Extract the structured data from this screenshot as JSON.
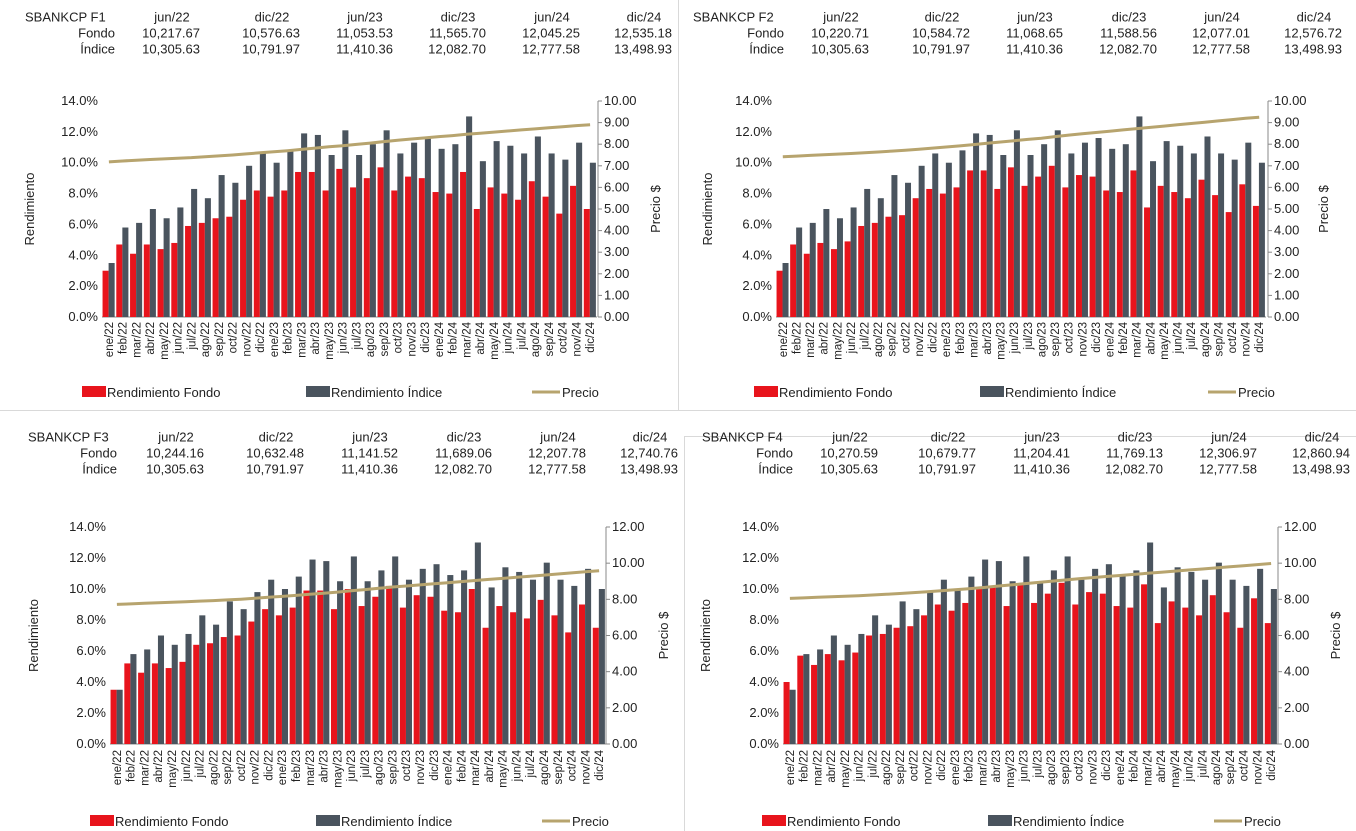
{
  "colors": {
    "fondo": "#e8141c",
    "indice": "#4a545e",
    "precio": "#b7a46e"
  },
  "legend": {
    "fondo": "Rendimiento Fondo",
    "indice": "Rendimiento Índice",
    "precio": "Precio"
  },
  "chart_data": [
    {
      "type": "bar",
      "name": "SBANKCP F1",
      "periods": [
        "jun/22",
        "dic/22",
        "jun/23",
        "dic/23",
        "jun/24",
        "dic/24"
      ],
      "row_labels": [
        "Fondo",
        "Índice"
      ],
      "fondo_row": [
        "10,217.67",
        "10,576.63",
        "11,053.53",
        "11,565.70",
        "12,045.25",
        "12,535.18"
      ],
      "indice_row": [
        "10,305.63",
        "10,791.97",
        "11,410.36",
        "12,082.70",
        "12,777.58",
        "13,498.93"
      ],
      "categories": [
        "ene/22",
        "feb/22",
        "mar/22",
        "abr/22",
        "may/22",
        "jun/22",
        "jul/22",
        "ago/22",
        "sep/22",
        "oct/22",
        "nov/22",
        "dic/22",
        "ene/23",
        "feb/23",
        "mar/23",
        "abr/23",
        "may/23",
        "jun/23",
        "jul/23",
        "ago/23",
        "sep/23",
        "oct/23",
        "nov/23",
        "dic/23",
        "ene/24",
        "feb/24",
        "mar/24",
        "abr/24",
        "may/24",
        "jun/24",
        "jul/24",
        "ago/24",
        "sep/24",
        "oct/24",
        "nov/24",
        "dic/24"
      ],
      "series": [
        {
          "name": "Rendimiento Fondo",
          "axis": "left",
          "values": [
            3.0,
            4.7,
            4.1,
            4.7,
            4.4,
            4.8,
            5.9,
            6.1,
            6.4,
            6.5,
            7.6,
            8.2,
            7.8,
            8.2,
            9.4,
            9.4,
            8.2,
            9.6,
            8.4,
            9.0,
            9.7,
            8.2,
            9.1,
            9.0,
            8.1,
            8.0,
            9.4,
            7.0,
            8.4,
            8.0,
            7.6,
            8.8,
            7.8,
            6.7,
            8.5,
            7.0
          ]
        },
        {
          "name": "Rendimiento Índice",
          "axis": "left",
          "values": [
            3.5,
            5.8,
            6.1,
            7.0,
            6.4,
            7.1,
            8.3,
            7.7,
            9.2,
            8.7,
            9.8,
            10.6,
            10.0,
            10.8,
            11.9,
            11.8,
            10.5,
            12.1,
            10.5,
            11.2,
            12.1,
            10.6,
            11.3,
            11.6,
            10.9,
            11.2,
            13.0,
            10.1,
            11.4,
            11.1,
            10.6,
            11.7,
            10.6,
            10.2,
            11.3,
            10.0
          ]
        },
        {
          "name": "Precio",
          "axis": "right",
          "type": "line",
          "values": [
            7.18,
            7.22,
            7.26,
            7.29,
            7.32,
            7.35,
            7.38,
            7.42,
            7.46,
            7.5,
            7.55,
            7.6,
            7.65,
            7.7,
            7.76,
            7.82,
            7.88,
            7.93,
            7.99,
            8.05,
            8.12,
            8.18,
            8.24,
            8.29,
            8.35,
            8.4,
            8.46,
            8.51,
            8.56,
            8.61,
            8.66,
            8.71,
            8.76,
            8.81,
            8.86,
            8.9
          ]
        }
      ],
      "ylabel": "Rendimiento",
      "y2label": "Precio $",
      "ylim": [
        0,
        14
      ],
      "yticks": [
        "0.0%",
        "2.0%",
        "4.0%",
        "6.0%",
        "8.0%",
        "10.0%",
        "12.0%",
        "14.0%"
      ],
      "y2lim": [
        0,
        10
      ],
      "y2ticks": [
        "0.00",
        "1.00",
        "2.00",
        "3.00",
        "4.00",
        "5.00",
        "6.00",
        "7.00",
        "8.00",
        "9.00",
        "10.00"
      ]
    },
    {
      "type": "bar",
      "name": "SBANKCP F2",
      "periods": [
        "jun/22",
        "dic/22",
        "jun/23",
        "dic/23",
        "jun/24",
        "dic/24"
      ],
      "row_labels": [
        "Fondo",
        "Índice"
      ],
      "fondo_row": [
        "10,220.71",
        "10,584.72",
        "11,068.65",
        "11,588.56",
        "12,077.01",
        "12,576.72"
      ],
      "indice_row": [
        "10,305.63",
        "10,791.97",
        "11,410.36",
        "12,082.70",
        "12,777.58",
        "13,498.93"
      ],
      "categories": [
        "ene/22",
        "feb/22",
        "mar/22",
        "abr/22",
        "may/22",
        "jun/22",
        "jul/22",
        "ago/22",
        "sep/22",
        "oct/22",
        "nov/22",
        "dic/22",
        "ene/23",
        "feb/23",
        "mar/23",
        "abr/23",
        "may/23",
        "jun/23",
        "jul/23",
        "ago/23",
        "sep/23",
        "oct/23",
        "nov/23",
        "dic/23",
        "ene/24",
        "feb/24",
        "mar/24",
        "abr/24",
        "may/24",
        "jun/24",
        "jul/24",
        "ago/24",
        "sep/24",
        "oct/24",
        "nov/24",
        "dic/24"
      ],
      "series": [
        {
          "name": "Rendimiento Fondo",
          "axis": "left",
          "values": [
            3.0,
            4.7,
            4.1,
            4.8,
            4.4,
            4.9,
            5.9,
            6.1,
            6.5,
            6.6,
            7.7,
            8.3,
            8.0,
            8.4,
            9.5,
            9.5,
            8.3,
            9.7,
            8.5,
            9.1,
            9.8,
            8.4,
            9.2,
            9.1,
            8.2,
            8.1,
            9.5,
            7.1,
            8.5,
            8.1,
            7.7,
            8.9,
            7.9,
            6.8,
            8.6,
            7.2
          ]
        },
        {
          "name": "Rendimiento Índice",
          "axis": "left",
          "values": [
            3.5,
            5.8,
            6.1,
            7.0,
            6.4,
            7.1,
            8.3,
            7.7,
            9.2,
            8.7,
            9.8,
            10.6,
            10.0,
            10.8,
            11.9,
            11.8,
            10.5,
            12.1,
            10.5,
            11.2,
            12.1,
            10.6,
            11.3,
            11.6,
            10.9,
            11.2,
            13.0,
            10.1,
            11.4,
            11.1,
            10.6,
            11.7,
            10.6,
            10.2,
            11.3,
            10.0
          ]
        },
        {
          "name": "Precio",
          "axis": "right",
          "type": "line",
          "values": [
            7.42,
            7.45,
            7.48,
            7.51,
            7.54,
            7.57,
            7.6,
            7.64,
            7.68,
            7.72,
            7.77,
            7.82,
            7.87,
            7.92,
            7.98,
            8.04,
            8.1,
            8.16,
            8.22,
            8.28,
            8.35,
            8.42,
            8.48,
            8.54,
            8.6,
            8.66,
            8.72,
            8.78,
            8.84,
            8.9,
            8.96,
            9.02,
            9.08,
            9.14,
            9.2,
            9.25
          ]
        }
      ],
      "ylabel": "Rendimiento",
      "y2label": "Precio $",
      "ylim": [
        0,
        14
      ],
      "yticks": [
        "0.0%",
        "2.0%",
        "4.0%",
        "6.0%",
        "8.0%",
        "10.0%",
        "12.0%",
        "14.0%"
      ],
      "y2lim": [
        0,
        10
      ],
      "y2ticks": [
        "0.00",
        "1.00",
        "2.00",
        "3.00",
        "4.00",
        "5.00",
        "6.00",
        "7.00",
        "8.00",
        "9.00",
        "10.00"
      ]
    },
    {
      "type": "bar",
      "name": "SBANKCP F3",
      "periods": [
        "jun/22",
        "dic/22",
        "jun/23",
        "dic/23",
        "jun/24",
        "dic/24"
      ],
      "row_labels": [
        "Fondo",
        "Índice"
      ],
      "fondo_row": [
        "10,244.16",
        "10,632.48",
        "11,141.52",
        "11,689.06",
        "12,207.78",
        "12,740.76"
      ],
      "indice_row": [
        "10,305.63",
        "10,791.97",
        "11,410.36",
        "12,082.70",
        "12,777.58",
        "13,498.93"
      ],
      "categories": [
        "ene/22",
        "feb/22",
        "mar/22",
        "abr/22",
        "may/22",
        "jun/22",
        "jul/22",
        "ago/22",
        "sep/22",
        "oct/22",
        "nov/22",
        "dic/22",
        "ene/23",
        "feb/23",
        "mar/23",
        "abr/23",
        "may/23",
        "jun/23",
        "jul/23",
        "ago/23",
        "sep/23",
        "oct/23",
        "nov/23",
        "dic/23",
        "ene/24",
        "feb/24",
        "mar/24",
        "abr/24",
        "may/24",
        "jun/24",
        "jul/24",
        "ago/24",
        "sep/24",
        "oct/24",
        "nov/24",
        "dic/24"
      ],
      "series": [
        {
          "name": "Rendimiento Fondo",
          "axis": "left",
          "values": [
            3.5,
            5.2,
            4.6,
            5.2,
            4.9,
            5.3,
            6.4,
            6.5,
            6.9,
            7.0,
            7.9,
            8.7,
            8.3,
            8.8,
            9.9,
            9.9,
            8.7,
            10.0,
            8.9,
            9.5,
            10.2,
            8.8,
            9.6,
            9.5,
            8.6,
            8.5,
            10.0,
            7.5,
            8.9,
            8.5,
            8.1,
            9.3,
            8.3,
            7.2,
            9.0,
            7.5
          ]
        },
        {
          "name": "Rendimiento Índice",
          "axis": "left",
          "values": [
            3.5,
            5.8,
            6.1,
            7.0,
            6.4,
            7.1,
            8.3,
            7.7,
            9.2,
            8.7,
            9.8,
            10.6,
            10.0,
            10.8,
            11.9,
            11.8,
            10.5,
            12.1,
            10.5,
            11.2,
            12.1,
            10.6,
            11.3,
            11.6,
            10.9,
            11.2,
            13.0,
            10.1,
            11.4,
            11.1,
            10.6,
            11.7,
            10.6,
            10.2,
            11.3,
            10.0
          ]
        },
        {
          "name": "Precio",
          "axis": "right",
          "type": "line",
          "values": [
            7.72,
            7.75,
            7.78,
            7.81,
            7.84,
            7.87,
            7.9,
            7.93,
            7.97,
            8.01,
            8.06,
            8.11,
            8.16,
            8.22,
            8.28,
            8.34,
            8.4,
            8.47,
            8.54,
            8.61,
            8.68,
            8.74,
            8.8,
            8.86,
            8.92,
            8.98,
            9.04,
            9.1,
            9.16,
            9.22,
            9.28,
            9.34,
            9.4,
            9.46,
            9.52,
            9.58
          ]
        }
      ],
      "ylabel": "Rendimiento",
      "y2label": "Precio $",
      "ylim": [
        0,
        14
      ],
      "yticks": [
        "0.0%",
        "2.0%",
        "4.0%",
        "6.0%",
        "8.0%",
        "10.0%",
        "12.0%",
        "14.0%"
      ],
      "y2lim": [
        0,
        12
      ],
      "y2ticks": [
        "0.00",
        "2.00",
        "4.00",
        "6.00",
        "8.00",
        "10.00",
        "12.00"
      ]
    },
    {
      "type": "bar",
      "name": "SBANKCP F4",
      "periods": [
        "jun/22",
        "dic/22",
        "jun/23",
        "dic/23",
        "jun/24",
        "dic/24"
      ],
      "row_labels": [
        "Fondo",
        "Índice"
      ],
      "fondo_row": [
        "10,270.59",
        "10,679.77",
        "11,204.41",
        "11,769.13",
        "12,306.97",
        "12,860.94"
      ],
      "indice_row": [
        "10,305.63",
        "10,791.97",
        "11,410.36",
        "12,082.70",
        "12,777.58",
        "13,498.93"
      ],
      "categories": [
        "ene/22",
        "feb/22",
        "mar/22",
        "abr/22",
        "may/22",
        "jun/22",
        "jul/22",
        "ago/22",
        "sep/22",
        "oct/22",
        "nov/22",
        "dic/22",
        "ene/23",
        "feb/23",
        "mar/23",
        "abr/23",
        "may/23",
        "jun/23",
        "jul/23",
        "ago/23",
        "sep/23",
        "oct/23",
        "nov/23",
        "dic/23",
        "ene/24",
        "feb/24",
        "mar/24",
        "abr/24",
        "may/24",
        "jun/24",
        "jul/24",
        "ago/24",
        "sep/24",
        "oct/24",
        "nov/24",
        "dic/24"
      ],
      "series": [
        {
          "name": "Rendimiento Fondo",
          "axis": "left",
          "values": [
            4.0,
            5.7,
            5.1,
            5.8,
            5.4,
            5.9,
            7.0,
            7.1,
            7.5,
            7.6,
            8.3,
            9.0,
            8.6,
            9.1,
            10.1,
            10.2,
            8.9,
            10.3,
            9.1,
            9.7,
            10.4,
            9.0,
            9.8,
            9.7,
            8.9,
            8.8,
            10.3,
            7.8,
            9.2,
            8.8,
            8.3,
            9.6,
            8.5,
            7.5,
            9.4,
            7.8
          ]
        },
        {
          "name": "Rendimiento Índice",
          "axis": "left",
          "values": [
            3.5,
            5.8,
            6.1,
            7.0,
            6.4,
            7.1,
            8.3,
            7.7,
            9.2,
            8.7,
            9.8,
            10.6,
            10.0,
            10.8,
            11.9,
            11.8,
            10.5,
            12.1,
            10.5,
            11.2,
            12.1,
            10.6,
            11.3,
            11.6,
            10.9,
            11.2,
            13.0,
            10.1,
            11.4,
            11.1,
            10.6,
            11.7,
            10.6,
            10.2,
            11.3,
            10.0
          ]
        },
        {
          "name": "Precio",
          "axis": "right",
          "type": "line",
          "values": [
            8.05,
            8.08,
            8.11,
            8.14,
            8.17,
            8.2,
            8.24,
            8.28,
            8.32,
            8.37,
            8.42,
            8.47,
            8.53,
            8.59,
            8.65,
            8.72,
            8.79,
            8.86,
            8.93,
            9.0,
            9.07,
            9.14,
            9.2,
            9.26,
            9.32,
            9.38,
            9.44,
            9.5,
            9.56,
            9.62,
            9.68,
            9.74,
            9.8,
            9.86,
            9.92,
            9.98
          ]
        }
      ],
      "ylabel": "Rendimiento",
      "y2label": "Precio $",
      "ylim": [
        0,
        14
      ],
      "yticks": [
        "0.0%",
        "2.0%",
        "4.0%",
        "6.0%",
        "8.0%",
        "10.0%",
        "12.0%",
        "14.0%"
      ],
      "y2lim": [
        0,
        12
      ],
      "y2ticks": [
        "0.00",
        "2.00",
        "4.00",
        "6.00",
        "8.00",
        "10.00",
        "12.00"
      ]
    }
  ]
}
